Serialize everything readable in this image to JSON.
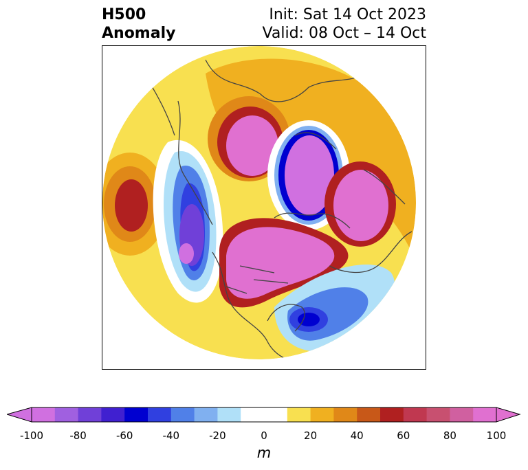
{
  "title": {
    "left_line1": "H500",
    "left_line2": "Anomaly",
    "right_line1": "Init: Sat 14 Oct 2023",
    "right_line2": "Valid: 08 Oct – 14 Oct"
  },
  "colorbar": {
    "unit": "m",
    "tick_labels": [
      "-100",
      "-80",
      "-60",
      "-40",
      "-20",
      "0",
      "20",
      "40",
      "60",
      "80",
      "100"
    ],
    "levels": [
      -100,
      -90,
      -80,
      -70,
      -60,
      -50,
      -40,
      -30,
      -20,
      -10,
      10,
      20,
      30,
      40,
      50,
      60,
      70,
      80,
      90,
      100
    ],
    "colors": [
      "#d070e0",
      "#a060e0",
      "#7040d8",
      "#4020d0",
      "#0000d0",
      "#3040e0",
      "#5080e8",
      "#80b0f0",
      "#b0e0f8",
      "#ffffff",
      "#f8e050",
      "#f0b020",
      "#e08818",
      "#c85818",
      "#b02020",
      "#c03850",
      "#c85070",
      "#d060a0",
      "#e070d0"
    ],
    "under_color": "#d070e0",
    "over_color": "#e070d0"
  },
  "colors": {
    "positive_weak": "#f8e050",
    "positive_mid": "#f0b020",
    "positive_strong": "#e08818",
    "positive_max": "#e070d0",
    "negative_weak": "#b0e0f8",
    "negative_mid": "#5080e8",
    "negative_strong": "#0000d0",
    "negative_max": "#d070e0",
    "coastline": "#444444"
  },
  "icons": {
    "map": "polar-stereographic-map",
    "colorbar_left": "triangle-left-extend",
    "colorbar_right": "triangle-right-extend"
  }
}
